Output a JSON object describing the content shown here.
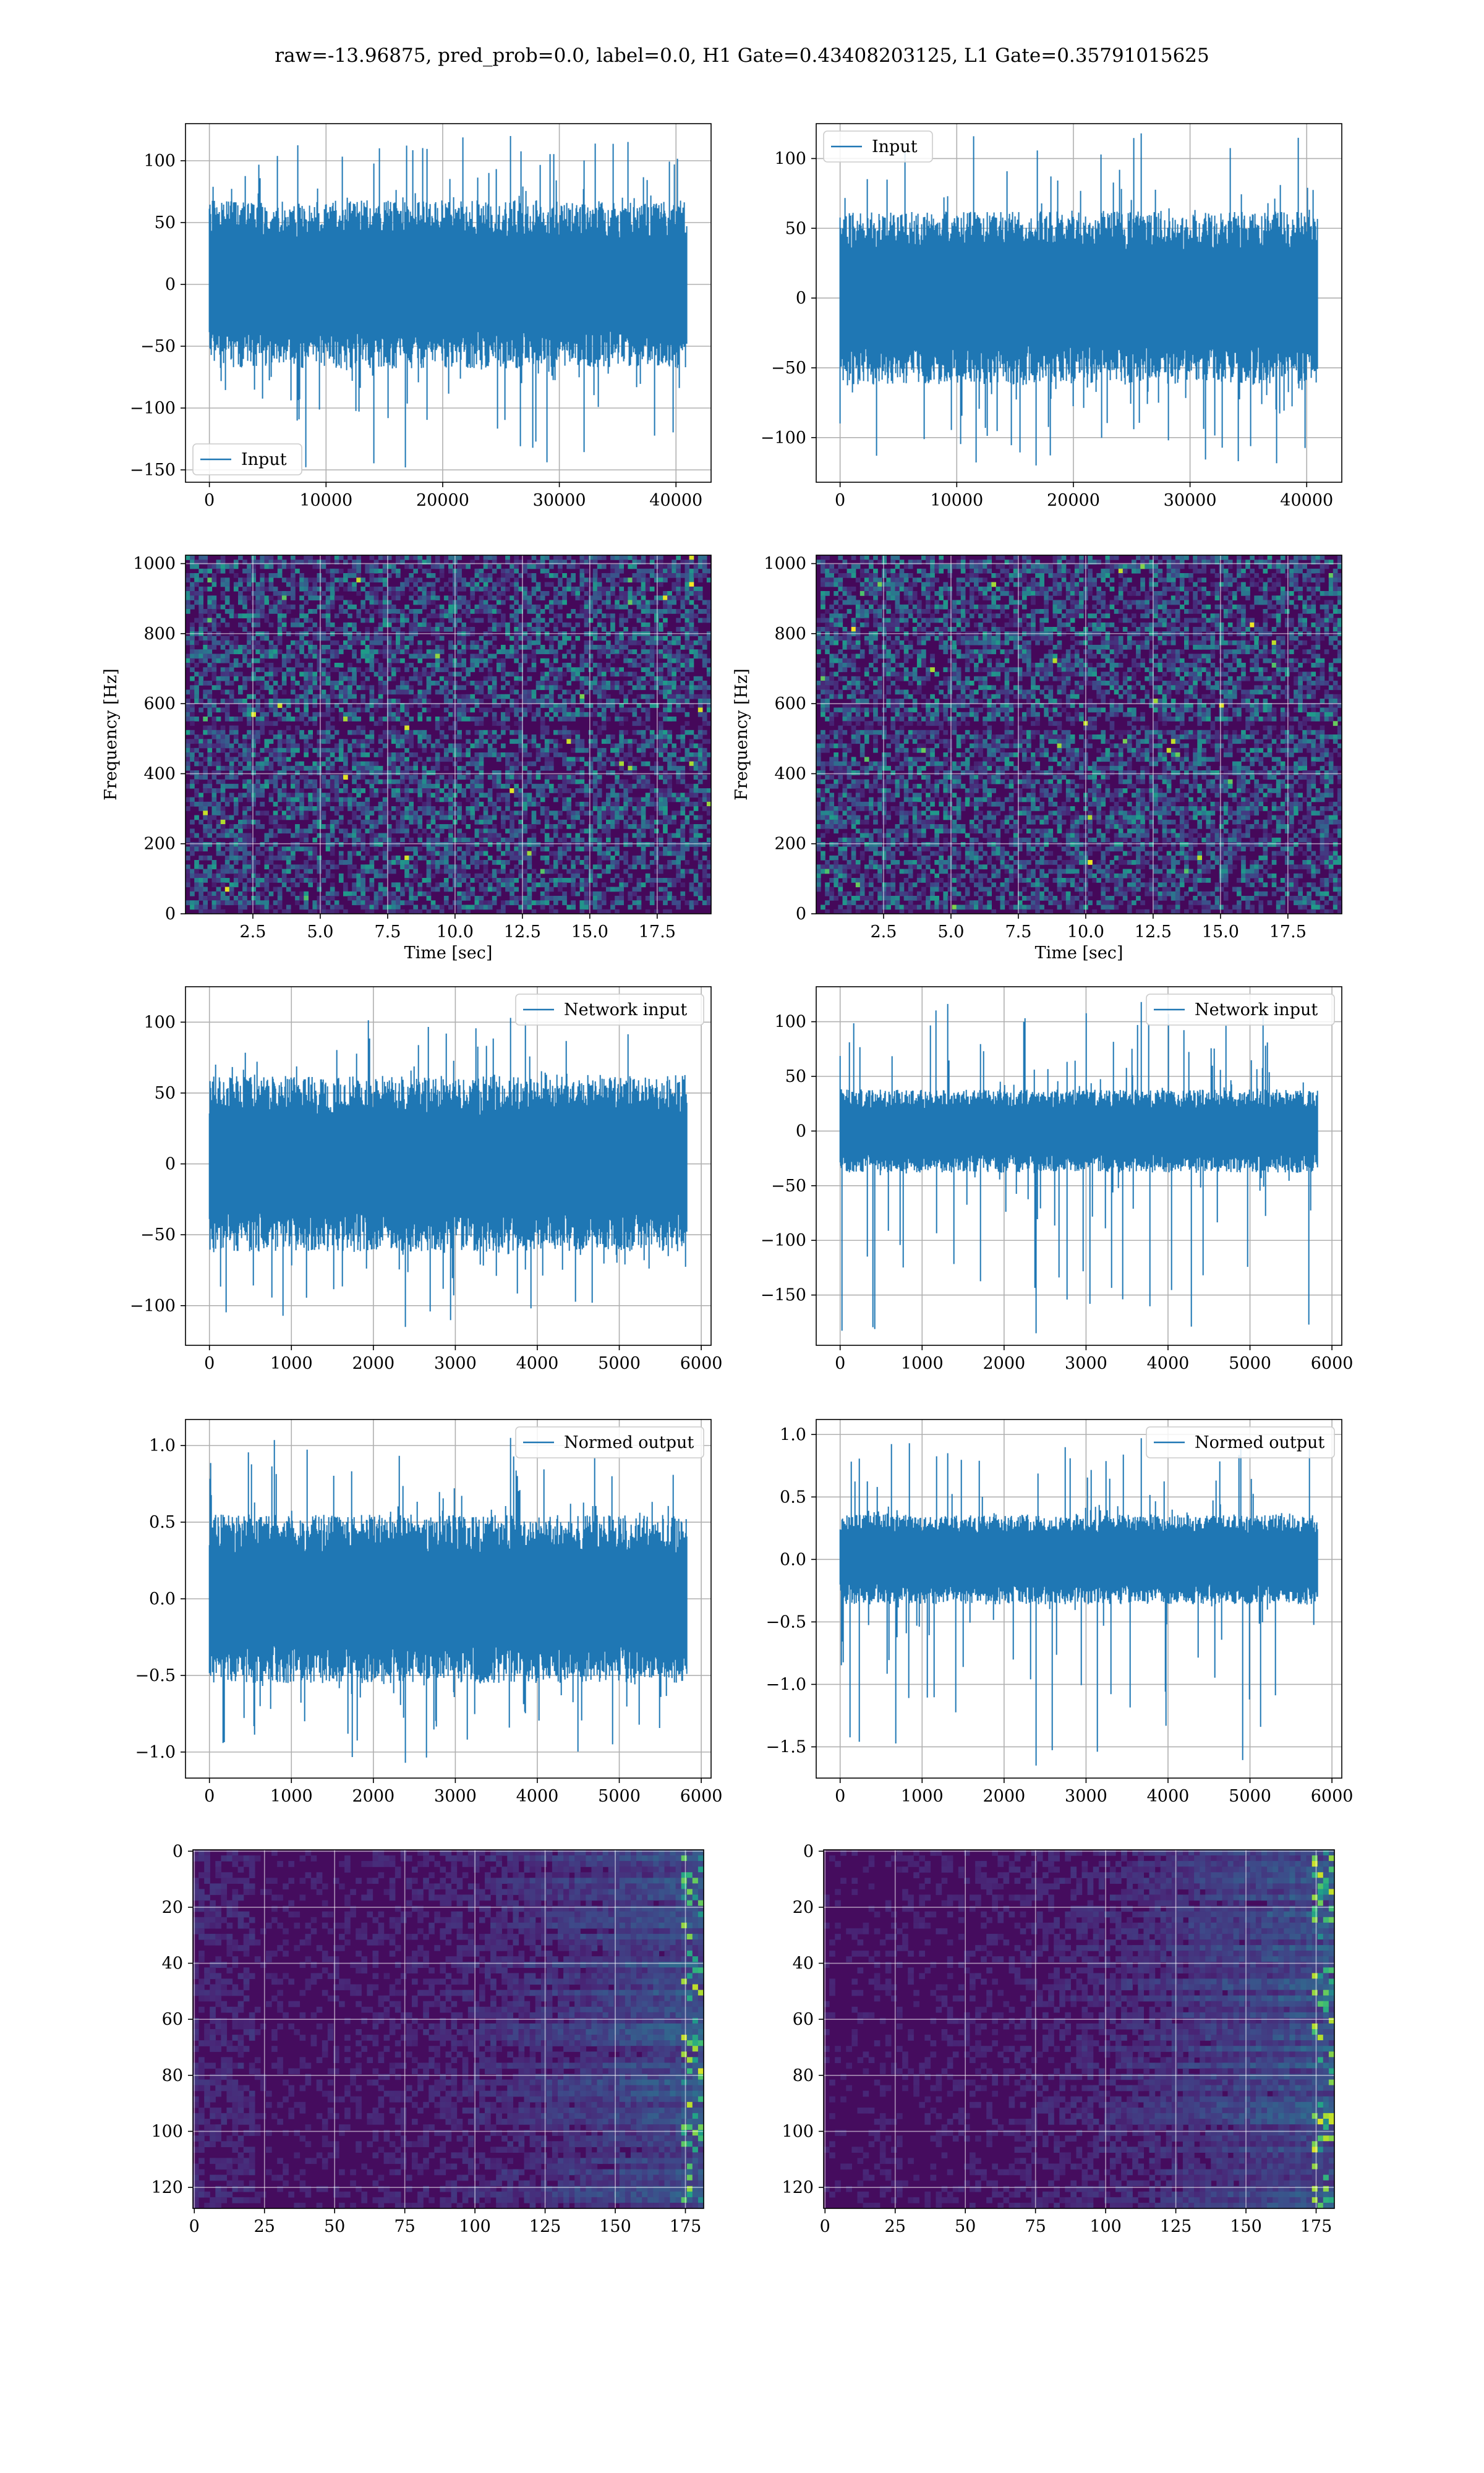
{
  "figure": {
    "suptitle": "raw=-13.96875, pred_prob=0.0, label=0.0, H1 Gate=0.43408203125, L1 Gate=0.35791015625"
  },
  "colors": {
    "line": "#1f77b4",
    "grid": "#b0b0b0",
    "cmap": "viridis"
  },
  "chart_data": [
    {
      "id": "h1-input",
      "type": "line",
      "title": "",
      "xlabel": "",
      "ylabel": "",
      "legend": "Input",
      "legend_loc": "lower-left",
      "xlim": [
        -2048,
        43008
      ],
      "ylim": [
        -160,
        130
      ],
      "xticks": [
        0,
        10000,
        20000,
        30000,
        40000
      ],
      "xticklabels": [
        "0",
        "10000",
        "20000",
        "30000",
        "40000"
      ],
      "yticks": [
        -150,
        -100,
        -50,
        0,
        50,
        100
      ],
      "yticklabels": [
        "−150",
        "−100",
        "−50",
        "0",
        "50",
        "100"
      ],
      "series": [
        {
          "name": "Input",
          "n": 40960,
          "center": 0,
          "band": 68,
          "max": 120,
          "min": -148
        }
      ]
    },
    {
      "id": "l1-input",
      "type": "line",
      "title": "",
      "xlabel": "",
      "ylabel": "",
      "legend": "Input",
      "legend_loc": "upper-left",
      "xlim": [
        -2048,
        43008
      ],
      "ylim": [
        -132,
        125
      ],
      "xticks": [
        0,
        10000,
        20000,
        30000,
        40000
      ],
      "xticklabels": [
        "0",
        "10000",
        "20000",
        "30000",
        "40000"
      ],
      "yticks": [
        -100,
        -50,
        0,
        50,
        100
      ],
      "yticklabels": [
        "−100",
        "−50",
        "0",
        "50",
        "100"
      ],
      "series": [
        {
          "name": "Input",
          "n": 40960,
          "center": 0,
          "band": 62,
          "max": 118,
          "min": -120
        }
      ]
    },
    {
      "id": "h1-spectrogram",
      "type": "heatmap",
      "title": "",
      "xlabel": "Time [sec]",
      "ylabel": "Frequency [Hz]",
      "xlim": [
        0.0,
        19.5
      ],
      "ylim": [
        0,
        1024
      ],
      "xticks": [
        2.5,
        5.0,
        7.5,
        10.0,
        12.5,
        15.0,
        17.5
      ],
      "xticklabels": [
        "2.5",
        "5.0",
        "7.5",
        "10.0",
        "12.5",
        "15.0",
        "17.5"
      ],
      "yticks": [
        0,
        200,
        400,
        600,
        800,
        1000
      ],
      "yticklabels": [
        "0",
        "200",
        "400",
        "600",
        "800",
        "1000"
      ]
    },
    {
      "id": "l1-spectrogram",
      "type": "heatmap",
      "title": "",
      "xlabel": "Time [sec]",
      "ylabel": "Frequency [Hz]",
      "xlim": [
        0.0,
        19.5
      ],
      "ylim": [
        0,
        1024
      ],
      "xticks": [
        2.5,
        5.0,
        7.5,
        10.0,
        12.5,
        15.0,
        17.5
      ],
      "xticklabels": [
        "2.5",
        "5.0",
        "7.5",
        "10.0",
        "12.5",
        "15.0",
        "17.5"
      ],
      "yticks": [
        0,
        200,
        400,
        600,
        800,
        1000
      ],
      "yticklabels": [
        "0",
        "200",
        "400",
        "600",
        "800",
        "1000"
      ]
    },
    {
      "id": "h1-network-input",
      "type": "line",
      "title": "",
      "xlabel": "",
      "ylabel": "",
      "legend": "Network input",
      "legend_loc": "upper-right",
      "xlim": [
        -292,
        6120
      ],
      "ylim": [
        -128,
        125
      ],
      "xticks": [
        0,
        1000,
        2000,
        3000,
        4000,
        5000,
        6000
      ],
      "xticklabels": [
        "0",
        "1000",
        "2000",
        "3000",
        "4000",
        "5000",
        "6000"
      ],
      "yticks": [
        -100,
        -50,
        0,
        50,
        100
      ],
      "yticklabels": [
        "−100",
        "−50",
        "0",
        "50",
        "100"
      ],
      "series": [
        {
          "name": "Network input",
          "n": 5830,
          "center": 0,
          "band": 62,
          "max": 103,
          "min": -115
        }
      ]
    },
    {
      "id": "l1-network-input",
      "type": "line",
      "title": "",
      "xlabel": "",
      "ylabel": "",
      "legend": "Network input",
      "legend_loc": "upper-right",
      "xlim": [
        -292,
        6120
      ],
      "ylim": [
        -196,
        132
      ],
      "xticks": [
        0,
        1000,
        2000,
        3000,
        4000,
        5000,
        6000
      ],
      "xticklabels": [
        "0",
        "1000",
        "2000",
        "3000",
        "4000",
        "5000",
        "6000"
      ],
      "yticks": [
        -150,
        -100,
        -50,
        0,
        50,
        100
      ],
      "yticklabels": [
        "−150",
        "−100",
        "−50",
        "0",
        "50",
        "100"
      ],
      "series": [
        {
          "name": "Network input",
          "n": 5830,
          "center": 0,
          "band": 38,
          "max": 118,
          "min": -185
        }
      ]
    },
    {
      "id": "h1-normed-output",
      "type": "line",
      "title": "",
      "xlabel": "",
      "ylabel": "",
      "legend": "Normed output",
      "legend_loc": "upper-right",
      "xlim": [
        -292,
        6120
      ],
      "ylim": [
        -1.17,
        1.17
      ],
      "xticks": [
        0,
        1000,
        2000,
        3000,
        4000,
        5000,
        6000
      ],
      "xticklabels": [
        "0",
        "1000",
        "2000",
        "3000",
        "4000",
        "5000",
        "6000"
      ],
      "yticks": [
        -1.0,
        -0.5,
        0.0,
        0.5,
        1.0
      ],
      "yticklabels": [
        "−1.0",
        "−0.5",
        "0.0",
        "0.5",
        "1.0"
      ],
      "series": [
        {
          "name": "Normed output",
          "n": 5830,
          "center": 0,
          "band": 0.55,
          "max": 1.05,
          "min": -1.07
        }
      ]
    },
    {
      "id": "l1-normed-output",
      "type": "line",
      "title": "",
      "xlabel": "",
      "ylabel": "",
      "legend": "Normed output",
      "legend_loc": "upper-right",
      "xlim": [
        -292,
        6120
      ],
      "ylim": [
        -1.75,
        1.12
      ],
      "xticks": [
        0,
        1000,
        2000,
        3000,
        4000,
        5000,
        6000
      ],
      "xticklabels": [
        "0",
        "1000",
        "2000",
        "3000",
        "4000",
        "5000",
        "6000"
      ],
      "yticks": [
        -1.5,
        -1.0,
        -0.5,
        0.0,
        0.5,
        1.0
      ],
      "yticklabels": [
        "−1.5",
        "−1.0",
        "−0.5",
        "0.0",
        "0.5",
        "1.0"
      ],
      "series": [
        {
          "name": "Normed output",
          "n": 5830,
          "center": 0,
          "band": 0.36,
          "max": 0.97,
          "min": -1.65
        }
      ]
    },
    {
      "id": "h1-feature-map",
      "type": "heatmap",
      "title": "",
      "xlabel": "",
      "ylabel": "",
      "xlim": [
        -0.5,
        181.5
      ],
      "ylim": [
        127.5,
        -0.5
      ],
      "rows": 128,
      "cols": 182,
      "xticks": [
        0,
        25,
        50,
        75,
        100,
        125,
        150,
        175
      ],
      "xticklabels": [
        "0",
        "25",
        "50",
        "75",
        "100",
        "125",
        "150",
        "175"
      ],
      "yticks": [
        0,
        20,
        40,
        60,
        80,
        100,
        120
      ],
      "yticklabels": [
        "0",
        "20",
        "40",
        "60",
        "80",
        "100",
        "120"
      ]
    },
    {
      "id": "l1-feature-map",
      "type": "heatmap",
      "title": "",
      "xlabel": "",
      "ylabel": "",
      "xlim": [
        -0.5,
        181.5
      ],
      "ylim": [
        127.5,
        -0.5
      ],
      "rows": 128,
      "cols": 182,
      "xticks": [
        0,
        25,
        50,
        75,
        100,
        125,
        150,
        175
      ],
      "xticklabels": [
        "0",
        "25",
        "50",
        "75",
        "100",
        "125",
        "150",
        "175"
      ],
      "yticks": [
        0,
        20,
        40,
        60,
        80,
        100,
        120
      ],
      "yticklabels": [
        "0",
        "20",
        "40",
        "60",
        "80",
        "100",
        "120"
      ]
    }
  ]
}
